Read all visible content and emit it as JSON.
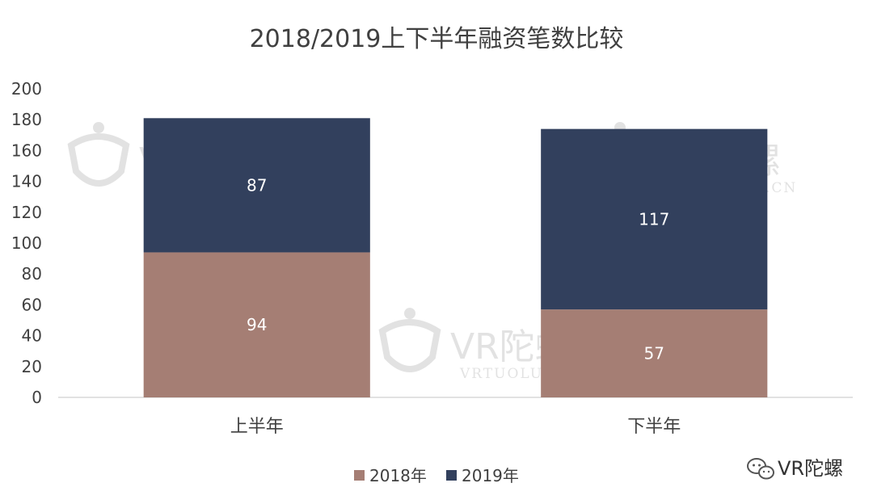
{
  "chart_data": {
    "type": "bar",
    "stacked": true,
    "title": "2018/2019上下半年融资笔数比较",
    "categories": [
      "上半年",
      "下半年"
    ],
    "series": [
      {
        "name": "2018年",
        "values": [
          94,
          57
        ],
        "color": "#a57e74"
      },
      {
        "name": "2019年",
        "values": [
          87,
          117
        ],
        "color": "#32405d"
      }
    ],
    "ylim": [
      0,
      200
    ],
    "yticks": [
      0,
      20,
      40,
      60,
      80,
      100,
      120,
      140,
      160,
      180,
      200
    ],
    "grid": false,
    "legend": "bottom"
  },
  "watermark": {
    "logo_text": "VR陀螺",
    "url_text": "VRTUOLUO.CN"
  },
  "footer": {
    "brand_label": "VR陀螺",
    "icon": "wechat-icon"
  }
}
